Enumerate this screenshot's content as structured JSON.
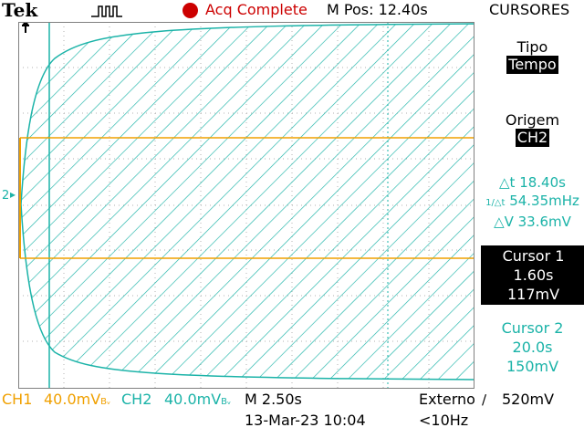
{
  "header": {
    "brand": "Tek",
    "acq_status": "Acq Complete",
    "mpos": "M Pos: 12.40s",
    "menu_title": "CURSORES"
  },
  "scope": {
    "channel_marker": "2",
    "colors": {
      "ch1": "#f0a000",
      "ch2": "#1bb3a8",
      "grid": "#b0b0b0"
    },
    "trigger_icon": "pulse-trigger-icon"
  },
  "side_menu": {
    "tipo_label": "Tipo",
    "tipo_value": "Tempo",
    "origem_label": "Origem",
    "origem_value": "CH2",
    "readout_dt": "△t 18.40s",
    "readout_freq": "54.35mHz",
    "readout_dv": "△V 33.6mV",
    "cursor1_label": "Cursor 1",
    "cursor1_time": "1.60s",
    "cursor1_value": "117mV",
    "cursor2_label": "Cursor 2",
    "cursor2_time": "20.0s",
    "cursor2_value": "150mV"
  },
  "bottom": {
    "ch1_label": "CH1",
    "ch1_scale": "40.0mV",
    "ch1_bw": "Bᵥ",
    "ch2_label": "CH2",
    "ch2_scale": "40.0mV",
    "ch2_bw": "Bᵥ",
    "timebase": "M 2.50s",
    "date": "13-Mar-23 10:04",
    "trigger_source": "Externo",
    "trigger_level": "520mV",
    "freq": "<10Hz"
  }
}
